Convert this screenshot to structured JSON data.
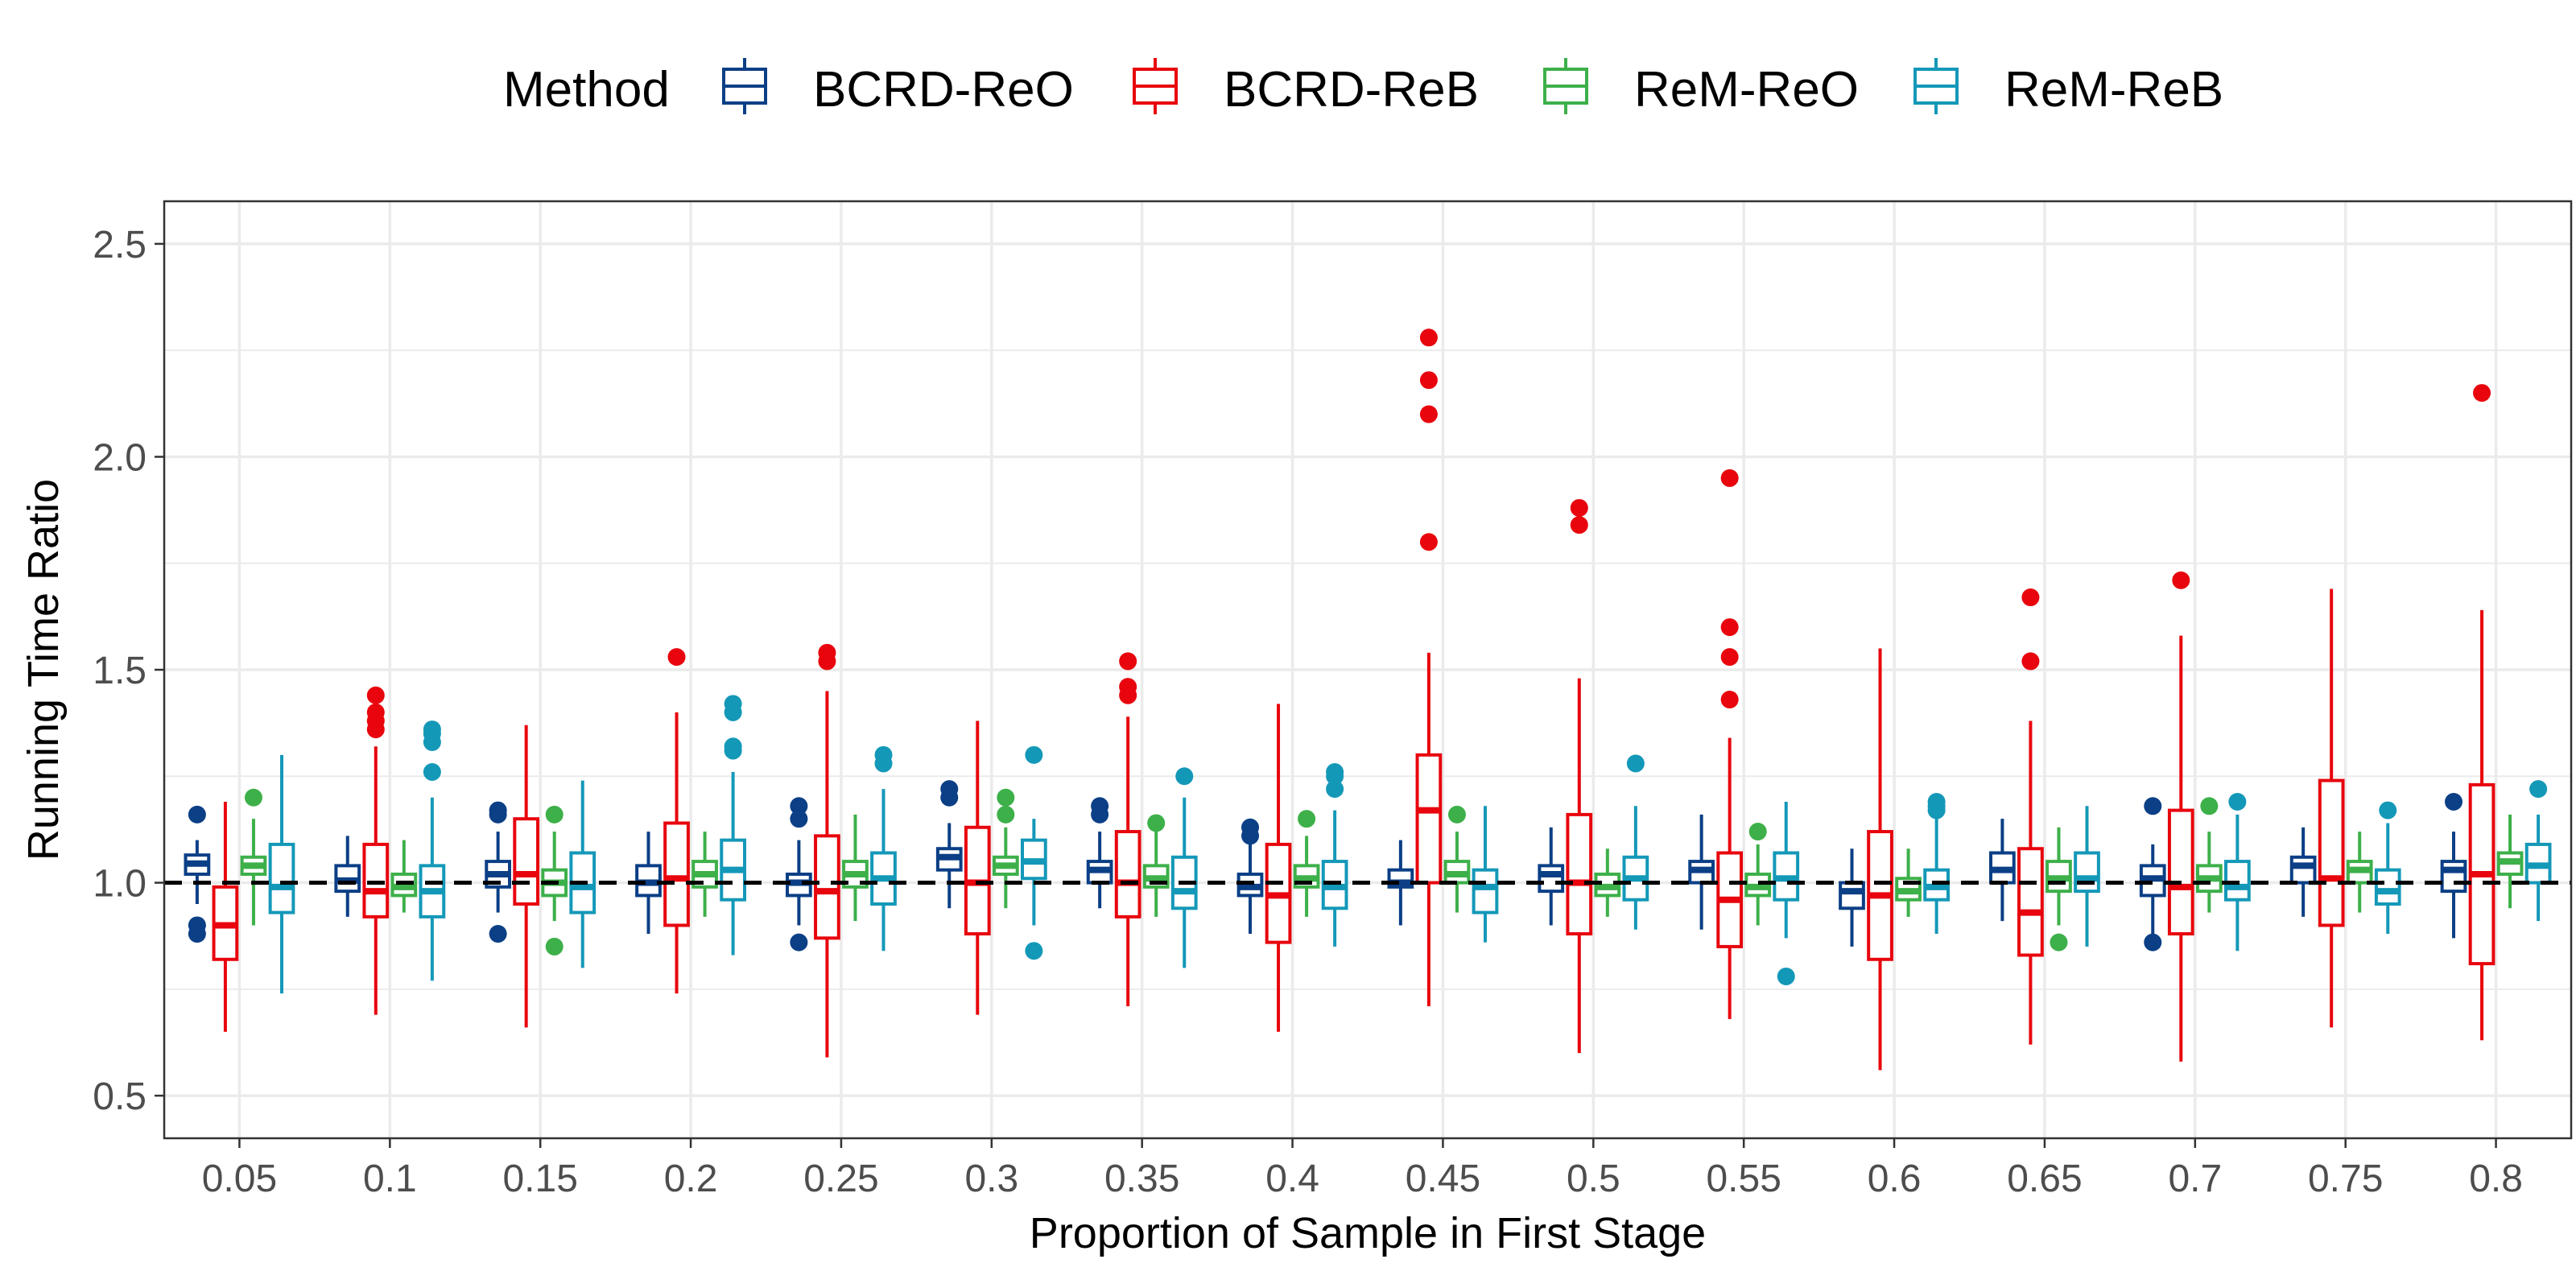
{
  "chart_data": {
    "type": "boxplot",
    "title": "",
    "xlabel": "Proportion of Sample in First Stage",
    "ylabel": "Running Time Ratio",
    "ylim": [
      0.4,
      2.6
    ],
    "yticks": [
      "0.5",
      "1.0",
      "1.5",
      "2.0",
      "2.5"
    ],
    "reference_line": 1.0,
    "legend": {
      "title": "Method",
      "position": "top"
    },
    "categories": [
      "0.05",
      "0.1",
      "0.15",
      "0.2",
      "0.25",
      "0.3",
      "0.35",
      "0.4",
      "0.45",
      "0.5",
      "0.55",
      "0.6",
      "0.65",
      "0.7",
      "0.75",
      "0.8"
    ],
    "series": [
      {
        "name": "BCRD-ReO",
        "color": "#0b3f86",
        "boxes": [
          {
            "lo": 0.95,
            "q1": 1.02,
            "med": 1.045,
            "q3": 1.065,
            "hi": 1.1,
            "out": [
              1.16,
              0.9,
              0.88
            ]
          },
          {
            "lo": 0.92,
            "q1": 0.98,
            "med": 1.005,
            "q3": 1.04,
            "hi": 1.11,
            "out": []
          },
          {
            "lo": 0.93,
            "q1": 0.99,
            "med": 1.02,
            "q3": 1.05,
            "hi": 1.12,
            "out": [
              1.17,
              1.16,
              0.88
            ]
          },
          {
            "lo": 0.88,
            "q1": 0.97,
            "med": 1.0,
            "q3": 1.04,
            "hi": 1.12,
            "out": []
          },
          {
            "lo": 0.9,
            "q1": 0.97,
            "med": 1.0,
            "q3": 1.02,
            "hi": 1.1,
            "out": [
              1.18,
              1.15,
              0.86
            ]
          },
          {
            "lo": 0.94,
            "q1": 1.03,
            "med": 1.06,
            "q3": 1.08,
            "hi": 1.14,
            "out": [
              1.22,
              1.2
            ]
          },
          {
            "lo": 0.94,
            "q1": 1.0,
            "med": 1.03,
            "q3": 1.05,
            "hi": 1.12,
            "out": [
              1.18,
              1.16
            ]
          },
          {
            "lo": 0.88,
            "q1": 0.97,
            "med": 0.99,
            "q3": 1.02,
            "hi": 1.1,
            "out": [
              1.13,
              1.11
            ]
          },
          {
            "lo": 0.9,
            "q1": 0.99,
            "med": 1.0,
            "q3": 1.03,
            "hi": 1.1,
            "out": []
          },
          {
            "lo": 0.9,
            "q1": 0.98,
            "med": 1.02,
            "q3": 1.04,
            "hi": 1.13,
            "out": []
          },
          {
            "lo": 0.89,
            "q1": 1.0,
            "med": 1.03,
            "q3": 1.05,
            "hi": 1.16,
            "out": []
          },
          {
            "lo": 0.85,
            "q1": 0.94,
            "med": 0.98,
            "q3": 1.0,
            "hi": 1.08,
            "out": []
          },
          {
            "lo": 0.91,
            "q1": 1.0,
            "med": 1.03,
            "q3": 1.07,
            "hi": 1.15,
            "out": []
          },
          {
            "lo": 0.88,
            "q1": 0.97,
            "med": 1.01,
            "q3": 1.04,
            "hi": 1.09,
            "out": [
              1.18,
              0.86
            ]
          },
          {
            "lo": 0.92,
            "q1": 1.0,
            "med": 1.04,
            "q3": 1.06,
            "hi": 1.13,
            "out": []
          },
          {
            "lo": 0.87,
            "q1": 0.98,
            "med": 1.03,
            "q3": 1.05,
            "hi": 1.12,
            "out": [
              1.19
            ]
          }
        ]
      },
      {
        "name": "BCRD-ReB",
        "color": "#e8050d",
        "boxes": [
          {
            "lo": 0.65,
            "q1": 0.82,
            "med": 0.9,
            "q3": 0.99,
            "hi": 1.19,
            "out": []
          },
          {
            "lo": 0.69,
            "q1": 0.92,
            "med": 0.98,
            "q3": 1.09,
            "hi": 1.32,
            "out": [
              1.44,
              1.4,
              1.38,
              1.36
            ]
          },
          {
            "lo": 0.66,
            "q1": 0.95,
            "med": 1.02,
            "q3": 1.15,
            "hi": 1.37,
            "out": []
          },
          {
            "lo": 0.74,
            "q1": 0.9,
            "med": 1.01,
            "q3": 1.14,
            "hi": 1.4,
            "out": [
              1.53
            ]
          },
          {
            "lo": 0.59,
            "q1": 0.87,
            "med": 0.98,
            "q3": 1.11,
            "hi": 1.45,
            "out": [
              1.54,
              1.52
            ]
          },
          {
            "lo": 0.69,
            "q1": 0.88,
            "med": 1.0,
            "q3": 1.13,
            "hi": 1.38,
            "out": []
          },
          {
            "lo": 0.71,
            "q1": 0.92,
            "med": 1.0,
            "q3": 1.12,
            "hi": 1.39,
            "out": [
              1.52,
              1.46,
              1.44
            ]
          },
          {
            "lo": 0.65,
            "q1": 0.86,
            "med": 0.97,
            "q3": 1.09,
            "hi": 1.42,
            "out": []
          },
          {
            "lo": 0.71,
            "q1": 1.0,
            "med": 1.17,
            "q3": 1.3,
            "hi": 1.54,
            "out": [
              2.28,
              2.18,
              2.1,
              1.8
            ]
          },
          {
            "lo": 0.6,
            "q1": 0.88,
            "med": 1.0,
            "q3": 1.16,
            "hi": 1.48,
            "out": [
              1.88,
              1.84
            ]
          },
          {
            "lo": 0.68,
            "q1": 0.85,
            "med": 0.96,
            "q3": 1.07,
            "hi": 1.34,
            "out": [
              1.95,
              1.6,
              1.53,
              1.43
            ]
          },
          {
            "lo": 0.56,
            "q1": 0.82,
            "med": 0.97,
            "q3": 1.12,
            "hi": 1.55,
            "out": []
          },
          {
            "lo": 0.62,
            "q1": 0.83,
            "med": 0.93,
            "q3": 1.08,
            "hi": 1.38,
            "out": [
              1.67,
              1.52
            ]
          },
          {
            "lo": 0.58,
            "q1": 0.88,
            "med": 0.99,
            "q3": 1.17,
            "hi": 1.58,
            "out": [
              1.71
            ]
          },
          {
            "lo": 0.66,
            "q1": 0.9,
            "med": 1.01,
            "q3": 1.24,
            "hi": 1.69,
            "out": []
          },
          {
            "lo": 0.63,
            "q1": 0.81,
            "med": 1.02,
            "q3": 1.23,
            "hi": 1.64,
            "out": [
              2.15
            ]
          }
        ]
      },
      {
        "name": "ReM-ReO",
        "color": "#3db04a",
        "boxes": [
          {
            "lo": 0.9,
            "q1": 1.02,
            "med": 1.04,
            "q3": 1.06,
            "hi": 1.15,
            "out": [
              1.2
            ]
          },
          {
            "lo": 0.93,
            "q1": 0.97,
            "med": 0.99,
            "q3": 1.02,
            "hi": 1.1,
            "out": []
          },
          {
            "lo": 0.91,
            "q1": 0.97,
            "med": 1.0,
            "q3": 1.03,
            "hi": 1.12,
            "out": [
              1.16,
              0.85
            ]
          },
          {
            "lo": 0.92,
            "q1": 0.99,
            "med": 1.02,
            "q3": 1.05,
            "hi": 1.12,
            "out": []
          },
          {
            "lo": 0.91,
            "q1": 0.99,
            "med": 1.02,
            "q3": 1.05,
            "hi": 1.16,
            "out": []
          },
          {
            "lo": 0.94,
            "q1": 1.02,
            "med": 1.04,
            "q3": 1.06,
            "hi": 1.13,
            "out": [
              1.2,
              1.16
            ]
          },
          {
            "lo": 0.92,
            "q1": 0.99,
            "med": 1.01,
            "q3": 1.04,
            "hi": 1.12,
            "out": [
              1.14
            ]
          },
          {
            "lo": 0.92,
            "q1": 0.99,
            "med": 1.01,
            "q3": 1.04,
            "hi": 1.11,
            "out": [
              1.15
            ]
          },
          {
            "lo": 0.93,
            "q1": 1.0,
            "med": 1.02,
            "q3": 1.05,
            "hi": 1.12,
            "out": [
              1.16
            ]
          },
          {
            "lo": 0.92,
            "q1": 0.97,
            "med": 0.99,
            "q3": 1.02,
            "hi": 1.08,
            "out": []
          },
          {
            "lo": 0.9,
            "q1": 0.97,
            "med": 0.99,
            "q3": 1.02,
            "hi": 1.09,
            "out": [
              1.12
            ]
          },
          {
            "lo": 0.92,
            "q1": 0.96,
            "med": 0.98,
            "q3": 1.01,
            "hi": 1.08,
            "out": []
          },
          {
            "lo": 0.9,
            "q1": 0.98,
            "med": 1.01,
            "q3": 1.05,
            "hi": 1.13,
            "out": [
              0.86
            ]
          },
          {
            "lo": 0.93,
            "q1": 0.98,
            "med": 1.01,
            "q3": 1.04,
            "hi": 1.12,
            "out": [
              1.18
            ]
          },
          {
            "lo": 0.93,
            "q1": 1.0,
            "med": 1.03,
            "q3": 1.05,
            "hi": 1.12,
            "out": []
          },
          {
            "lo": 0.94,
            "q1": 1.02,
            "med": 1.05,
            "q3": 1.07,
            "hi": 1.16,
            "out": []
          }
        ]
      },
      {
        "name": "ReM-ReB",
        "color": "#1498b8",
        "boxes": [
          {
            "lo": 0.74,
            "q1": 0.93,
            "med": 0.99,
            "q3": 1.09,
            "hi": 1.3,
            "out": []
          },
          {
            "lo": 0.77,
            "q1": 0.92,
            "med": 0.98,
            "q3": 1.04,
            "hi": 1.2,
            "out": [
              1.36,
              1.35,
              1.33,
              1.26
            ]
          },
          {
            "lo": 0.8,
            "q1": 0.93,
            "med": 0.99,
            "q3": 1.07,
            "hi": 1.24,
            "out": []
          },
          {
            "lo": 0.83,
            "q1": 0.96,
            "med": 1.03,
            "q3": 1.1,
            "hi": 1.26,
            "out": [
              1.42,
              1.4,
              1.32,
              1.31
            ]
          },
          {
            "lo": 0.84,
            "q1": 0.95,
            "med": 1.01,
            "q3": 1.07,
            "hi": 1.22,
            "out": [
              1.3,
              1.28
            ]
          },
          {
            "lo": 0.9,
            "q1": 1.01,
            "med": 1.05,
            "q3": 1.1,
            "hi": 1.15,
            "out": [
              1.3,
              0.84
            ]
          },
          {
            "lo": 0.8,
            "q1": 0.94,
            "med": 0.98,
            "q3": 1.06,
            "hi": 1.2,
            "out": [
              1.25
            ]
          },
          {
            "lo": 0.85,
            "q1": 0.94,
            "med": 0.99,
            "q3": 1.05,
            "hi": 1.17,
            "out": [
              1.26,
              1.25,
              1.22
            ]
          },
          {
            "lo": 0.86,
            "q1": 0.93,
            "med": 0.99,
            "q3": 1.03,
            "hi": 1.18,
            "out": []
          },
          {
            "lo": 0.89,
            "q1": 0.96,
            "med": 1.01,
            "q3": 1.06,
            "hi": 1.18,
            "out": [
              1.28
            ]
          },
          {
            "lo": 0.87,
            "q1": 0.96,
            "med": 1.01,
            "q3": 1.07,
            "hi": 1.19,
            "out": [
              0.78
            ]
          },
          {
            "lo": 0.88,
            "q1": 0.96,
            "med": 0.99,
            "q3": 1.03,
            "hi": 1.15,
            "out": [
              1.19,
              1.18,
              1.17
            ]
          },
          {
            "lo": 0.85,
            "q1": 0.98,
            "med": 1.01,
            "q3": 1.07,
            "hi": 1.18,
            "out": []
          },
          {
            "lo": 0.84,
            "q1": 0.96,
            "med": 0.99,
            "q3": 1.05,
            "hi": 1.16,
            "out": [
              1.19
            ]
          },
          {
            "lo": 0.88,
            "q1": 0.95,
            "med": 0.98,
            "q3": 1.03,
            "hi": 1.14,
            "out": [
              1.17
            ]
          },
          {
            "lo": 0.91,
            "q1": 1.0,
            "med": 1.04,
            "q3": 1.09,
            "hi": 1.16,
            "out": [
              1.22
            ]
          }
        ]
      }
    ]
  }
}
